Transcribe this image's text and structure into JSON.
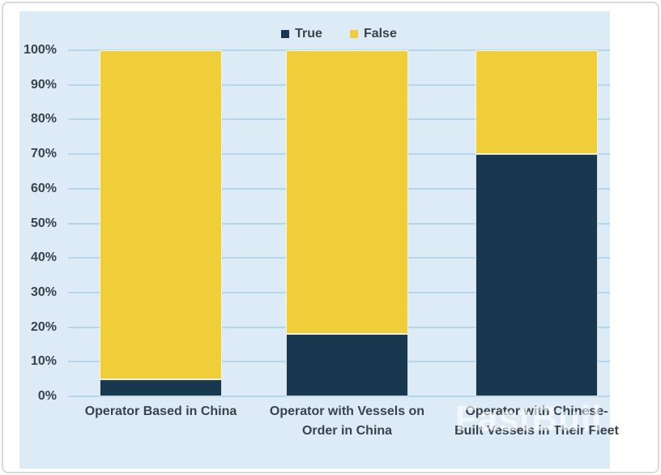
{
  "watermark": {
    "text": "FastBull"
  },
  "colors": {
    "frame_border": "#d9dadc",
    "panel_background": "#dcebf6",
    "gridline": "#b4d7ec",
    "axis_text": "#39424e",
    "watermark_text": "rgba(255,255,255,0.6)",
    "series_true": "#17384f",
    "series_false": "#efce3a"
  },
  "chart_data": {
    "type": "bar",
    "subtype": "stacked-percent",
    "title": "",
    "xlabel": "",
    "ylabel": "",
    "categories": [
      "Operator Based in China",
      "Operator with Vessels on Order in China",
      "Operator with Chinese-Built Vessels in Their Fleet"
    ],
    "series": [
      {
        "name": "True",
        "color": "#17384f",
        "values": [
          5,
          18,
          70
        ]
      },
      {
        "name": "False",
        "color": "#efce3a",
        "values": [
          95,
          82,
          30
        ]
      }
    ],
    "unit": "%",
    "ylim": [
      0,
      100
    ],
    "y_ticks": [
      "0%",
      "10%",
      "20%",
      "30%",
      "40%",
      "50%",
      "60%",
      "70%",
      "80%",
      "90%",
      "100%"
    ],
    "grid": true,
    "legend_position": "top-center"
  }
}
